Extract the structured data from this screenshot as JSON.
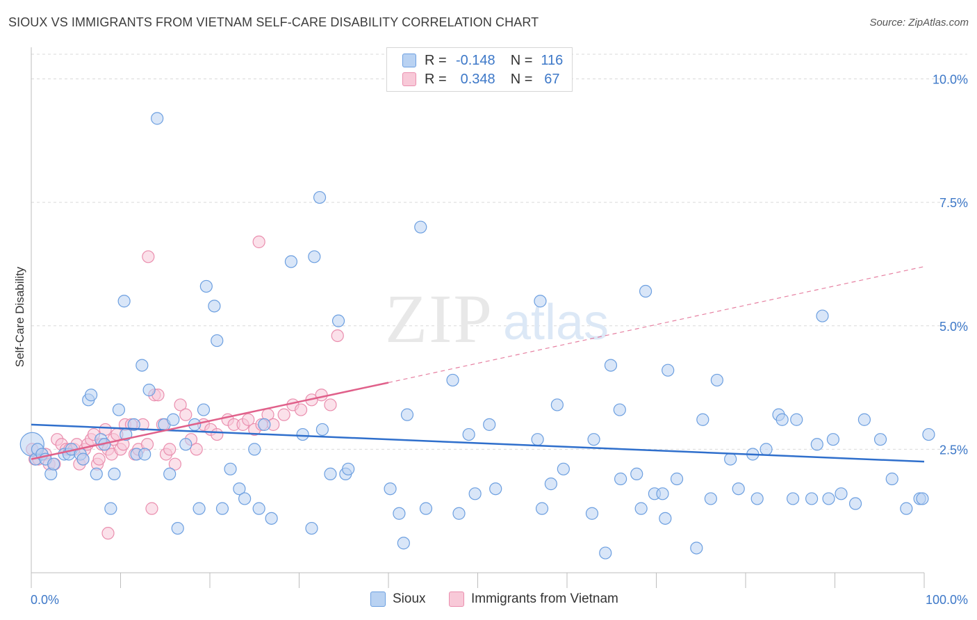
{
  "header": {
    "title": "SIOUX VS IMMIGRANTS FROM VIETNAM SELF-CARE DISABILITY CORRELATION CHART",
    "source": "Source: ZipAtlas.com"
  },
  "legend": {
    "rows": [
      {
        "r_label": "R =",
        "r_value": "-0.148",
        "n_label": "N =",
        "n_value": "116"
      },
      {
        "r_label": "R =",
        "r_value": "0.348",
        "n_label": "N =",
        "n_value": "67"
      }
    ]
  },
  "watermark": {
    "zip": "ZIP",
    "atlas": "atlas"
  },
  "colors": {
    "sioux_fill": "#b9d2f2",
    "sioux_stroke": "#6c9fe0",
    "sioux_line": "#2f6fcc",
    "vietnam_fill": "#f8c9d8",
    "vietnam_stroke": "#ea8eae",
    "vietnam_line": "#e0608a",
    "tick_label": "#3d78c8",
    "grid": "#d9d9d9"
  },
  "chart_data": {
    "type": "scatter",
    "title": "SIOUX VS IMMIGRANTS FROM VIETNAM SELF-CARE DISABILITY CORRELATION CHART",
    "xlabel": "",
    "ylabel": "Self-Care Disability",
    "xlim": [
      0,
      100
    ],
    "ylim": [
      0,
      10.5
    ],
    "x_tick_labels": [
      "0.0%",
      "100.0%"
    ],
    "y_ticks": [
      2.5,
      5.0,
      7.5,
      10.0
    ],
    "y_tick_labels": [
      "2.5%",
      "5.0%",
      "7.5%",
      "10.0%"
    ],
    "grid": "horizontal dashed",
    "legend_position": "top-center",
    "series": [
      {
        "name": "Sioux",
        "trend": {
          "x": [
            0,
            100
          ],
          "y": [
            3.0,
            2.25
          ],
          "dashed_from": null
        },
        "points": [
          [
            0.1,
            2.6
          ],
          [
            0.5,
            2.3
          ],
          [
            0.7,
            2.5
          ],
          [
            1.2,
            2.4
          ],
          [
            1.6,
            2.3
          ],
          [
            2.2,
            2.0
          ],
          [
            2.5,
            2.2
          ],
          [
            3.7,
            2.4
          ],
          [
            4.2,
            2.4
          ],
          [
            4.5,
            2.5
          ],
          [
            5.5,
            2.4
          ],
          [
            5.8,
            2.3
          ],
          [
            6.4,
            3.5
          ],
          [
            6.7,
            3.6
          ],
          [
            7.3,
            2.0
          ],
          [
            7.8,
            2.7
          ],
          [
            8.2,
            2.6
          ],
          [
            8.9,
            1.3
          ],
          [
            9.3,
            2.0
          ],
          [
            9.8,
            3.3
          ],
          [
            10.4,
            5.5
          ],
          [
            10.6,
            2.8
          ],
          [
            11.5,
            3.0
          ],
          [
            11.8,
            2.4
          ],
          [
            12.4,
            4.2
          ],
          [
            12.7,
            2.4
          ],
          [
            13.2,
            3.7
          ],
          [
            14.1,
            9.2
          ],
          [
            14.9,
            3.0
          ],
          [
            15.5,
            2.0
          ],
          [
            15.9,
            3.1
          ],
          [
            16.4,
            0.9
          ],
          [
            17.3,
            2.6
          ],
          [
            18.3,
            3.0
          ],
          [
            18.8,
            1.3
          ],
          [
            19.3,
            3.3
          ],
          [
            19.6,
            5.8
          ],
          [
            20.5,
            5.4
          ],
          [
            20.8,
            4.7
          ],
          [
            21.4,
            1.3
          ],
          [
            22.3,
            2.1
          ],
          [
            23.3,
            1.7
          ],
          [
            23.9,
            1.5
          ],
          [
            25.0,
            2.5
          ],
          [
            25.5,
            1.3
          ],
          [
            26.1,
            3.0
          ],
          [
            26.9,
            1.1
          ],
          [
            29.1,
            6.3
          ],
          [
            30.4,
            2.8
          ],
          [
            31.4,
            0.9
          ],
          [
            31.7,
            6.4
          ],
          [
            32.3,
            7.6
          ],
          [
            32.6,
            2.9
          ],
          [
            33.5,
            2.0
          ],
          [
            34.4,
            5.1
          ],
          [
            35.2,
            2.0
          ],
          [
            35.5,
            2.1
          ],
          [
            40.2,
            1.7
          ],
          [
            41.2,
            1.2
          ],
          [
            41.7,
            0.6
          ],
          [
            42.1,
            3.2
          ],
          [
            43.6,
            7.0
          ],
          [
            44.2,
            1.3
          ],
          [
            47.2,
            3.9
          ],
          [
            47.9,
            1.2
          ],
          [
            49.0,
            2.8
          ],
          [
            49.7,
            1.6
          ],
          [
            51.3,
            3.0
          ],
          [
            52.0,
            1.7
          ],
          [
            56.7,
            2.7
          ],
          [
            57.0,
            5.5
          ],
          [
            57.2,
            1.3
          ],
          [
            58.2,
            1.8
          ],
          [
            58.9,
            3.4
          ],
          [
            59.6,
            2.1
          ],
          [
            62.8,
            1.2
          ],
          [
            63.0,
            2.7
          ],
          [
            64.3,
            0.4
          ],
          [
            64.9,
            4.2
          ],
          [
            66.0,
            1.9
          ],
          [
            65.9,
            3.3
          ],
          [
            67.8,
            2.0
          ],
          [
            68.3,
            1.3
          ],
          [
            68.8,
            5.7
          ],
          [
            69.8,
            1.6
          ],
          [
            70.7,
            1.6
          ],
          [
            71.0,
            1.1
          ],
          [
            71.3,
            4.1
          ],
          [
            72.3,
            1.9
          ],
          [
            74.5,
            0.5
          ],
          [
            75.2,
            3.1
          ],
          [
            76.1,
            1.5
          ],
          [
            76.8,
            3.9
          ],
          [
            78.3,
            2.3
          ],
          [
            79.2,
            1.7
          ],
          [
            80.8,
            2.4
          ],
          [
            81.3,
            1.5
          ],
          [
            82.3,
            2.5
          ],
          [
            83.7,
            3.2
          ],
          [
            84.1,
            3.1
          ],
          [
            85.3,
            1.5
          ],
          [
            85.7,
            3.1
          ],
          [
            87.4,
            1.5
          ],
          [
            88.0,
            2.6
          ],
          [
            88.6,
            5.2
          ],
          [
            89.3,
            1.5
          ],
          [
            89.8,
            2.7
          ],
          [
            90.7,
            1.6
          ],
          [
            92.3,
            1.4
          ],
          [
            93.3,
            3.1
          ],
          [
            95.1,
            2.7
          ],
          [
            96.4,
            1.9
          ],
          [
            98.0,
            1.3
          ],
          [
            99.5,
            1.5
          ],
          [
            100.5,
            2.8
          ],
          [
            99.8,
            1.5
          ]
        ]
      },
      {
        "name": "Immigrants from Vietnam",
        "trend": {
          "x": [
            0,
            40
          ],
          "y": [
            2.3,
            3.85
          ],
          "dashed_to": {
            "x": 100,
            "y": 6.2
          }
        },
        "points": [
          [
            0.1,
            2.5
          ],
          [
            0.4,
            2.3
          ],
          [
            0.8,
            2.3
          ],
          [
            1.2,
            2.4
          ],
          [
            1.6,
            2.4
          ],
          [
            2.0,
            2.2
          ],
          [
            2.6,
            2.2
          ],
          [
            2.9,
            2.7
          ],
          [
            3.4,
            2.6
          ],
          [
            3.9,
            2.5
          ],
          [
            4.3,
            2.5
          ],
          [
            4.8,
            2.5
          ],
          [
            5.1,
            2.6
          ],
          [
            5.4,
            2.2
          ],
          [
            5.8,
            2.3
          ],
          [
            6.0,
            2.5
          ],
          [
            6.3,
            2.6
          ],
          [
            6.7,
            2.7
          ],
          [
            7.0,
            2.8
          ],
          [
            7.4,
            2.2
          ],
          [
            7.6,
            2.3
          ],
          [
            7.9,
            2.6
          ],
          [
            8.3,
            2.9
          ],
          [
            8.6,
            2.5
          ],
          [
            9.0,
            2.4
          ],
          [
            9.2,
            2.7
          ],
          [
            9.6,
            2.8
          ],
          [
            10.0,
            2.5
          ],
          [
            10.3,
            2.6
          ],
          [
            10.5,
            3.0
          ],
          [
            11.2,
            3.0
          ],
          [
            11.6,
            2.4
          ],
          [
            12.0,
            2.5
          ],
          [
            12.5,
            3.0
          ],
          [
            13.0,
            2.6
          ],
          [
            13.5,
            1.3
          ],
          [
            13.8,
            3.6
          ],
          [
            14.2,
            3.6
          ],
          [
            14.7,
            3.0
          ],
          [
            15.1,
            2.4
          ],
          [
            15.5,
            2.5
          ],
          [
            16.1,
            2.2
          ],
          [
            16.7,
            3.4
          ],
          [
            17.3,
            3.2
          ],
          [
            17.9,
            2.7
          ],
          [
            18.5,
            2.5
          ],
          [
            19.3,
            3.0
          ],
          [
            20.1,
            2.9
          ],
          [
            20.8,
            2.8
          ],
          [
            22.0,
            3.1
          ],
          [
            22.7,
            3.0
          ],
          [
            23.7,
            3.0
          ],
          [
            24.3,
            3.1
          ],
          [
            25.0,
            2.9
          ],
          [
            25.8,
            3.0
          ],
          [
            26.5,
            3.2
          ],
          [
            27.1,
            3.0
          ],
          [
            28.3,
            3.2
          ],
          [
            29.3,
            3.4
          ],
          [
            30.2,
            3.3
          ],
          [
            31.4,
            3.5
          ],
          [
            32.5,
            3.6
          ],
          [
            33.5,
            3.4
          ],
          [
            34.3,
            4.8
          ],
          [
            13.1,
            6.4
          ],
          [
            25.5,
            6.7
          ],
          [
            8.6,
            0.8
          ]
        ]
      }
    ]
  }
}
